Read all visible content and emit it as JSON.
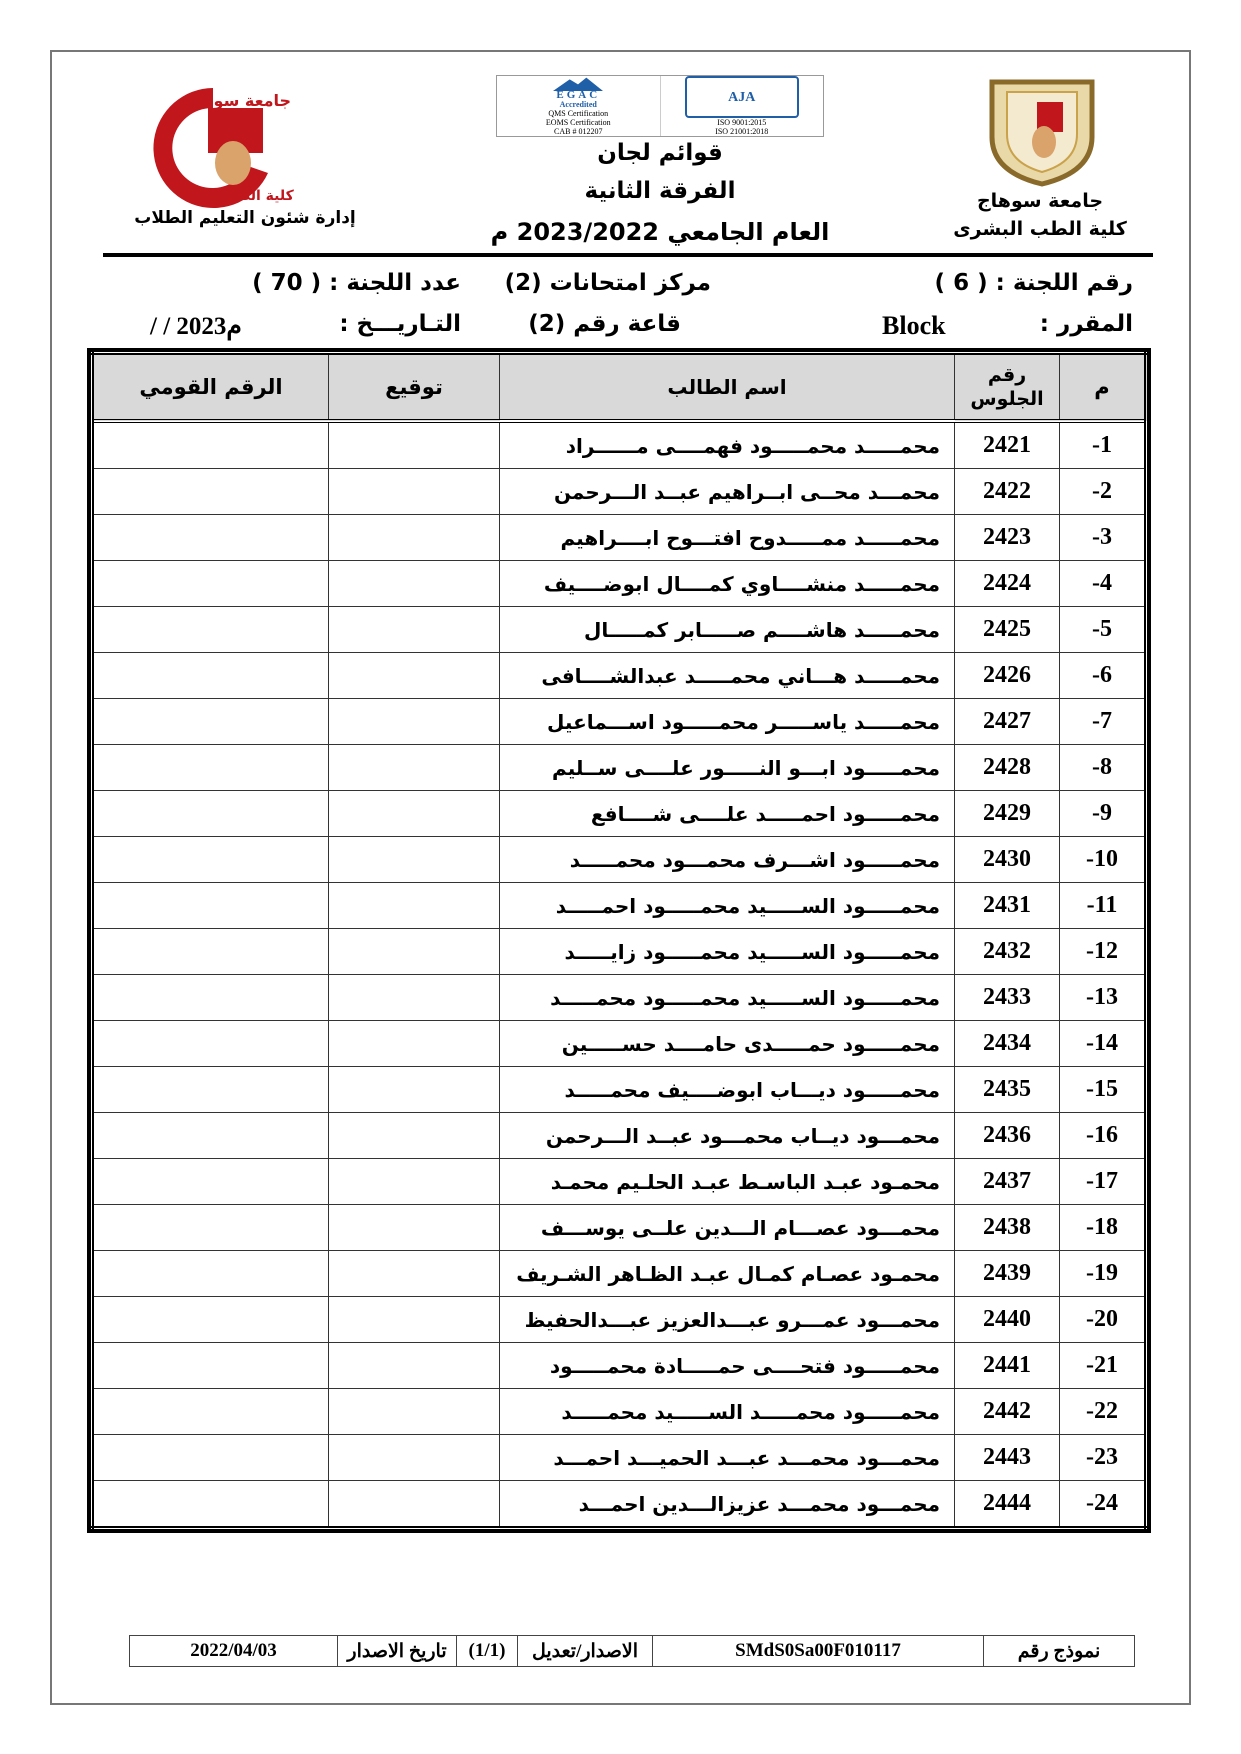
{
  "header": {
    "left_logo_text": [
      "جامعة سوهاج",
      "كلية الطب"
    ],
    "left_caption": "إدارة شئون التعليم الطلاب",
    "cert_logo_text": [
      "EGAC",
      "Accredited",
      "QMS Certification",
      "EOMS Certification",
      "CAB # 012207"
    ],
    "aja_logo_text": [
      "AJA",
      "ISO 9001:2015",
      "ISO 21001:2018"
    ],
    "title_1": "قوائم لجان",
    "title_2": "الفرقة الثانية",
    "title_3": "العام الجامعي 2023/2022 م",
    "right_line_1": "جامعة سوهاج",
    "right_line_2": "كلية الطب البشرى"
  },
  "info": {
    "committee_no": "رقم اللجنة : ( 6 )",
    "center": "مركز امتحانات (2)",
    "committee_count": "عدد اللجنة : ( 70 )",
    "course_label": "المقرر :",
    "course_value": "Block",
    "hall": "قاعة رقم (2)",
    "date_label": "التـاريـــخ :",
    "date_value": "/      /  2023م"
  },
  "table": {
    "headers": {
      "num": "م",
      "seat": "رقم الجلوس",
      "name": "اسم الطالب",
      "sign": "توقيع",
      "national_id": "الرقم القومي"
    },
    "rows": [
      {
        "num": "-1",
        "seat": "2421",
        "name": "محمـــــد محمـــــود فهمــــى مــــــراد"
      },
      {
        "num": "-2",
        "seat": "2422",
        "name": "محمـــد محــى ابــراهيم عبــد الـــرحمن"
      },
      {
        "num": "-3",
        "seat": "2423",
        "name": "محمـــــد ممـــــدوح افتـــوح ابــــراهيم"
      },
      {
        "num": "-4",
        "seat": "2424",
        "name": "محمـــــد منشــــاوي كمــــال ابوضــــيف"
      },
      {
        "num": "-5",
        "seat": "2425",
        "name": "محمـــــد  هاشــــم صـــــابر كمـــــال"
      },
      {
        "num": "-6",
        "seat": "2426",
        "name": "محمـــــد  هـــاني محمـــــد  عبدالشــــافى"
      },
      {
        "num": "-7",
        "seat": "2427",
        "name": "محمـــــد ياســـــر محمـــــود اســـماعيل"
      },
      {
        "num": "-8",
        "seat": "2428",
        "name": "محمـــــود ابـــو النـــــور علــــى ســليم"
      },
      {
        "num": "-9",
        "seat": "2429",
        "name": "محمـــــود احمـــــد علــــى شــــافع"
      },
      {
        "num": "-10",
        "seat": "2430",
        "name": "محمـــــود اشـــرف محمـــود محمـــــد"
      },
      {
        "num": "-11",
        "seat": "2431",
        "name": "محمـــــود الســـــيد محمـــــود احمـــــد"
      },
      {
        "num": "-12",
        "seat": "2432",
        "name": "محمـــــود الســـــيد محمـــــود زايـــــد"
      },
      {
        "num": "-13",
        "seat": "2433",
        "name": "محمـــــود الســـــيد محمـــــود محمـــــد"
      },
      {
        "num": "-14",
        "seat": "2434",
        "name": "محمـــــود حمـــــدى حامــــد حســـــين"
      },
      {
        "num": "-15",
        "seat": "2435",
        "name": "محمـــــود ديـــاب ابوضــــيف محمـــــد"
      },
      {
        "num": "-16",
        "seat": "2436",
        "name": "محمـــود ديــاب محمـــود عبــد الـــرحمن"
      },
      {
        "num": "-17",
        "seat": "2437",
        "name": "محمـود عبـد الباسـط عبـد الحلـيم محمـد"
      },
      {
        "num": "-18",
        "seat": "2438",
        "name": "محمـــود عصـــام الـــدين علــى يوســـف"
      },
      {
        "num": "-19",
        "seat": "2439",
        "name": "محمـود عصـام كمـال عبـد الظـاهر الشـريف"
      },
      {
        "num": "-20",
        "seat": "2440",
        "name": "محمـــود عمـــرو عبـــدالعزيز عبـــدالحفيظ"
      },
      {
        "num": "-21",
        "seat": "2441",
        "name": "محمـــــود فتحــــى حمـــــادة محمـــــود"
      },
      {
        "num": "-22",
        "seat": "2442",
        "name": "محمـــــود محمـــــد الســـــيد محمـــــد"
      },
      {
        "num": "-23",
        "seat": "2443",
        "name": "محمـــود محمـــد عبـــد الحميـــد احمـــد"
      },
      {
        "num": "-24",
        "seat": "2444",
        "name": "محمـــود محمـــد عزيزالـــدين احمـــد"
      }
    ]
  },
  "footer": {
    "form_label": "نموذج رقم",
    "form_value": "SMdS0Sa00F010117",
    "edition_label": "الاصدار/تعديل",
    "edition_value": "(1/1)",
    "issue_label": "تاريخ الاصدار",
    "issue_value": "2022/04/03"
  },
  "colors": {
    "logo_red": "#c0161c",
    "logo_gold": "#c9a24a",
    "cert_blue": "#1f5fa8",
    "header_fill": "#d9d9d9"
  }
}
